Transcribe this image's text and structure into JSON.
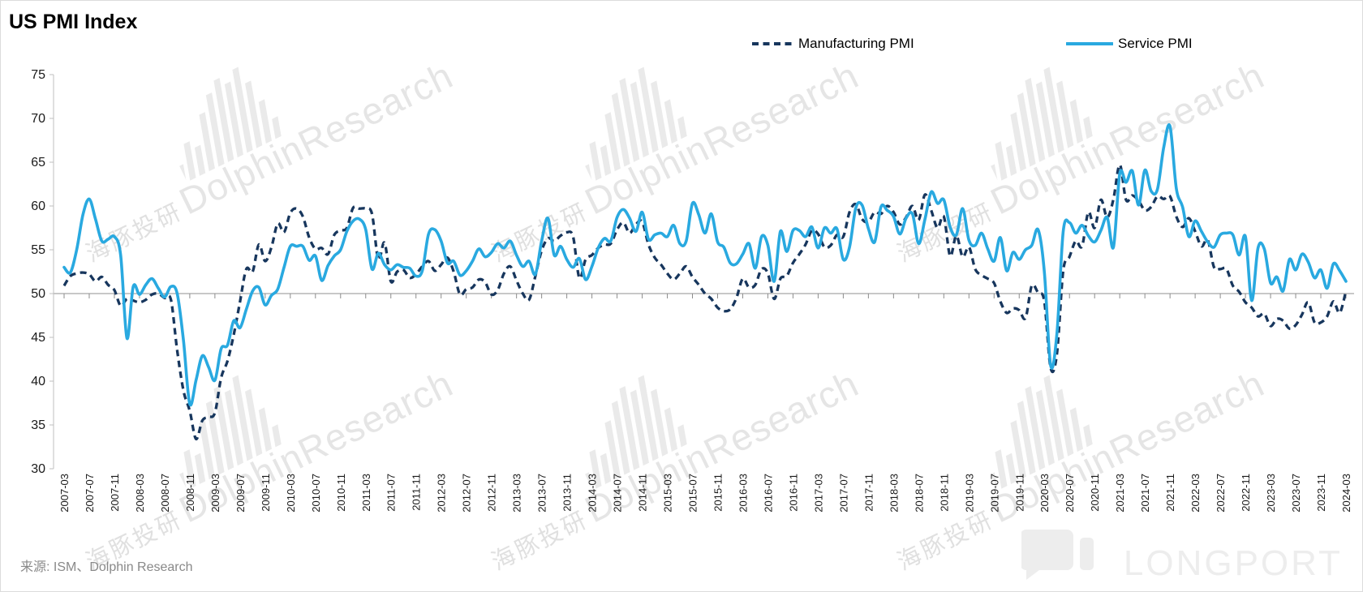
{
  "title": "US PMI Index",
  "legend": [
    {
      "label": "Manufacturing PMI",
      "color": "#17365D",
      "style": "dashed"
    },
    {
      "label": "Service PMI",
      "color": "#29A9E0",
      "style": "solid"
    }
  ],
  "source_note": "来源: ISM、Dolphin Research",
  "watermark": {
    "cn": "海豚投研",
    "en": "DolphinResearch",
    "brand": "LONGPORT"
  },
  "chart_data": {
    "type": "line",
    "x_start": "2007-03",
    "x_end": "2024-03",
    "x_interval_months": 1,
    "ylim": [
      30,
      75
    ],
    "y_tick_labels": [
      30,
      35,
      40,
      45,
      50,
      55,
      60,
      65,
      70,
      75
    ],
    "baseline": 50,
    "grid": "baseline-only",
    "legend_position": "top",
    "x_tick_labels": [
      "2007-03",
      "2007-07",
      "2007-11",
      "2008-03",
      "2008-07",
      "2008-11",
      "2009-03",
      "2009-07",
      "2009-11",
      "2010-03",
      "2010-07",
      "2010-11",
      "2011-03",
      "2011-07",
      "2011-11",
      "2012-03",
      "2012-07",
      "2012-11",
      "2013-03",
      "2013-07",
      "2013-11",
      "2014-03",
      "2014-07",
      "2014-11",
      "2015-03",
      "2015-07",
      "2015-11",
      "2016-03",
      "2016-07",
      "2016-11",
      "2017-03",
      "2017-07",
      "2017-11",
      "2018-03",
      "2018-07",
      "2018-11",
      "2019-03",
      "2019-07",
      "2019-11",
      "2020-03",
      "2020-07",
      "2020-11",
      "2021-03",
      "2021-07",
      "2021-11",
      "2022-03",
      "2022-07",
      "2022-11",
      "2023-03",
      "2023-07",
      "2023-11",
      "2024-03"
    ],
    "x_label_every_n_months": 4,
    "series": [
      {
        "name": "Manufacturing PMI",
        "color": "#17365D",
        "dash": true,
        "values": [
          50.9,
          52.0,
          52.3,
          52.4,
          52.2,
          51.4,
          51.9,
          51.0,
          50.4,
          48.6,
          49.4,
          49.2,
          49.0,
          49.3,
          49.9,
          50.0,
          49.5,
          49.3,
          43.5,
          38.9,
          36.6,
          33.4,
          35.5,
          35.9,
          36.4,
          40.4,
          42.3,
          45.3,
          49.1,
          52.8,
          52.5,
          55.6,
          53.7,
          55.3,
          58.0,
          57.0,
          59.2,
          59.7,
          58.8,
          56.4,
          55.1,
          55.2,
          54.5,
          56.7,
          57.2,
          57.5,
          59.8,
          59.7,
          59.7,
          59.1,
          53.9,
          55.8,
          51.4,
          52.5,
          52.7,
          51.8,
          52.2,
          53.1,
          53.7,
          52.6,
          53.3,
          54.1,
          52.5,
          49.9,
          50.5,
          50.7,
          51.6,
          51.3,
          49.9,
          50.4,
          52.3,
          53.1,
          51.5,
          50.0,
          49.3,
          52.0,
          54.9,
          56.3,
          56.0,
          56.6,
          57.0,
          56.5,
          51.8,
          53.9,
          54.4,
          55.2,
          55.6,
          55.7,
          57.3,
          58.1,
          56.9,
          57.9,
          58.2,
          55.6,
          54.1,
          53.3,
          52.3,
          51.6,
          52.3,
          53.1,
          51.9,
          51.0,
          50.0,
          49.4,
          48.4,
          48.0,
          48.2,
          49.5,
          51.7,
          50.7,
          51.0,
          52.8,
          52.3,
          49.4,
          51.7,
          52.0,
          53.5,
          54.5,
          55.6,
          57.2,
          56.8,
          55.3,
          55.5,
          56.7,
          56.5,
          59.3,
          60.2,
          58.5,
          58.2,
          59.3,
          59.1,
          60.0,
          59.3,
          57.9,
          58.7,
          60.0,
          58.4,
          61.3,
          59.5,
          57.5,
          58.8,
          54.3,
          56.6,
          54.2,
          55.3,
          52.8,
          52.1,
          51.7,
          51.2,
          49.1,
          47.8,
          48.3,
          48.1,
          47.2,
          50.9,
          50.1,
          49.1,
          41.5,
          43.1,
          52.6,
          54.2,
          56.0,
          55.4,
          59.3,
          57.5,
          60.7,
          58.7,
          60.8,
          64.7,
          60.7,
          61.2,
          60.6,
          59.5,
          59.9,
          61.1,
          60.8,
          61.1,
          58.8,
          57.6,
          58.6,
          57.1,
          55.4,
          56.1,
          53.0,
          52.8,
          52.8,
          50.9,
          50.2,
          49.0,
          48.4,
          47.4,
          47.7,
          46.3,
          47.1,
          46.9,
          46.0,
          46.4,
          47.6,
          49.0,
          46.7,
          46.7,
          47.4,
          49.1,
          47.8,
          50.3
        ]
      },
      {
        "name": "Service PMI",
        "color": "#29A9E0",
        "dash": false,
        "values": [
          53.0,
          52.4,
          55.0,
          59.0,
          60.8,
          58.5,
          56.0,
          56.2,
          56.5,
          54.4,
          44.9,
          50.8,
          49.9,
          51.0,
          51.7,
          50.6,
          49.6,
          50.8,
          50.0,
          44.6,
          37.4,
          40.1,
          42.9,
          41.6,
          40.1,
          43.7,
          44.1,
          46.9,
          46.1,
          48.2,
          50.3,
          50.7,
          48.7,
          49.8,
          50.5,
          53.0,
          55.4,
          55.4,
          55.4,
          53.8,
          54.3,
          51.5,
          53.2,
          54.3,
          55.0,
          57.1,
          58.3,
          58.5,
          57.3,
          52.8,
          54.6,
          53.3,
          52.7,
          53.3,
          53.0,
          52.9,
          52.0,
          52.6,
          56.8,
          57.3,
          56.0,
          53.5,
          53.7,
          52.1,
          52.6,
          53.7,
          55.1,
          54.2,
          54.7,
          55.7,
          55.2,
          56.0,
          54.4,
          53.1,
          53.7,
          52.2,
          56.0,
          58.6,
          54.4,
          55.4,
          53.9,
          53.0,
          54.0,
          51.6,
          53.1,
          55.2,
          56.3,
          56.0,
          58.7,
          59.6,
          58.6,
          57.1,
          59.3,
          56.2,
          56.7,
          56.9,
          56.5,
          57.8,
          55.7,
          56.0,
          60.3,
          59.0,
          56.9,
          59.1,
          55.9,
          55.3,
          53.5,
          53.4,
          54.5,
          55.7,
          52.9,
          56.5,
          55.5,
          51.4,
          57.1,
          54.8,
          57.2,
          57.2,
          56.5,
          57.6,
          55.2,
          57.5,
          56.9,
          57.4,
          53.9,
          55.3,
          59.8,
          60.1,
          57.4,
          55.9,
          59.9,
          59.5,
          58.8,
          56.8,
          58.6,
          59.1,
          55.7,
          58.5,
          61.6,
          60.3,
          60.7,
          57.6,
          56.7,
          59.7,
          56.1,
          55.5,
          56.9,
          55.1,
          53.7,
          56.4,
          52.6,
          54.7,
          53.9,
          55.0,
          55.5,
          57.3,
          52.5,
          41.8,
          45.4,
          57.1,
          58.1,
          56.9,
          57.8,
          56.6,
          55.9,
          57.2,
          58.7,
          55.3,
          63.7,
          62.7,
          64.0,
          60.1,
          64.1,
          61.7,
          61.9,
          66.7,
          69.1,
          62.0,
          59.9,
          56.5,
          58.3,
          57.1,
          55.9,
          55.3,
          56.7,
          56.9,
          56.7,
          54.4,
          56.5,
          49.2,
          55.2,
          55.1,
          51.2,
          51.9,
          50.3,
          53.9,
          52.7,
          54.5,
          53.6,
          51.8,
          52.7,
          50.6,
          53.4,
          52.6,
          51.4
        ]
      }
    ]
  }
}
